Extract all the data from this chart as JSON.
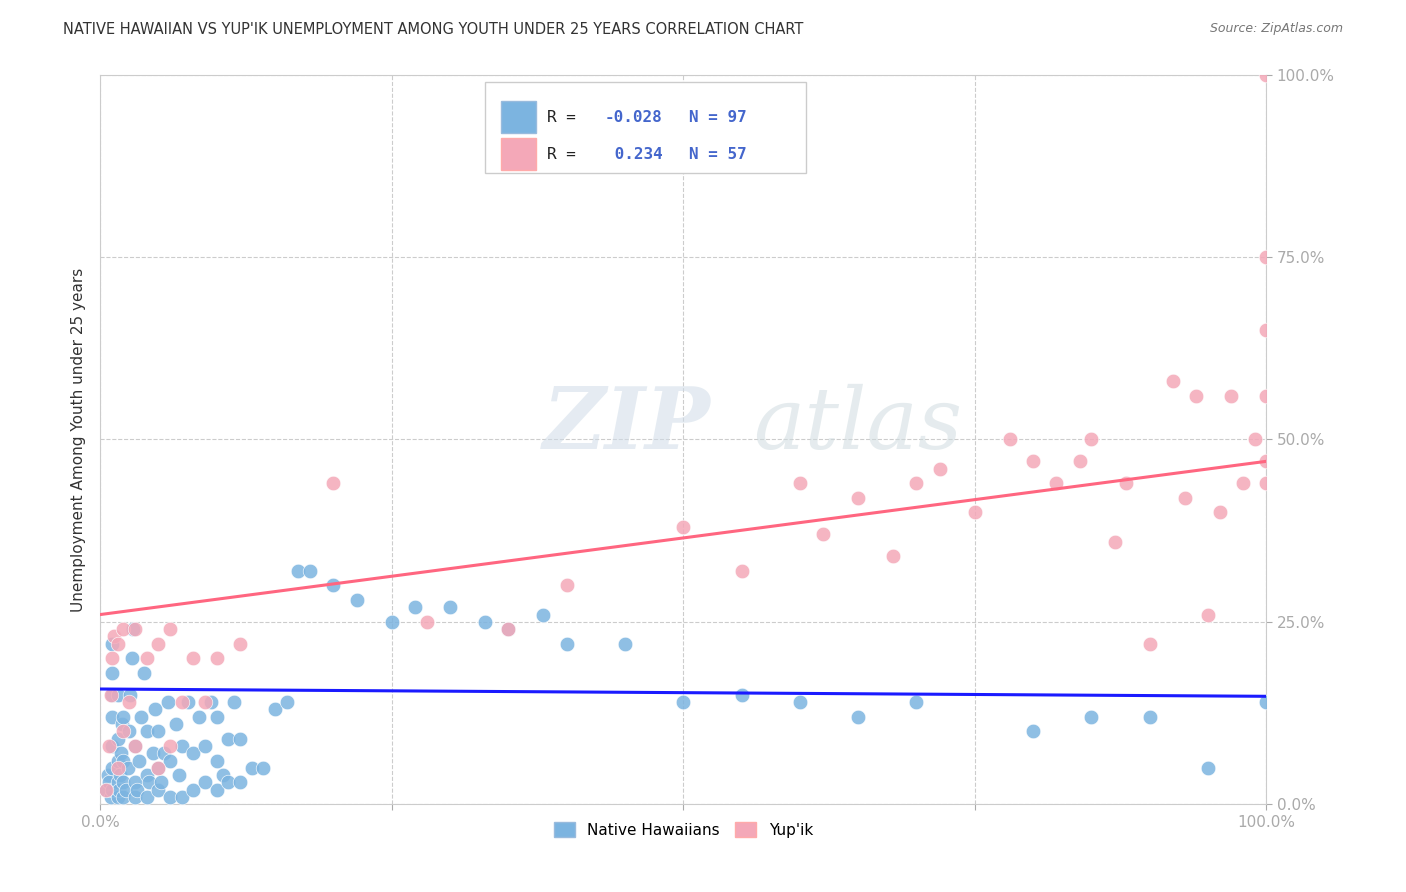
{
  "title": "NATIVE HAWAIIAN VS YUP'IK UNEMPLOYMENT AMONG YOUTH UNDER 25 YEARS CORRELATION CHART",
  "source": "Source: ZipAtlas.com",
  "ylabel": "Unemployment Among Youth under 25 years",
  "yticks": [
    "0.0%",
    "25.0%",
    "50.0%",
    "75.0%",
    "100.0%"
  ],
  "ytick_vals": [
    0.0,
    0.25,
    0.5,
    0.75,
    1.0
  ],
  "legend_label1": "Native Hawaiians",
  "legend_label2": "Yup'ik",
  "color_blue": "#7CB4E0",
  "color_pink": "#F4A8B8",
  "line_color_blue": "#1a1aff",
  "line_color_pink": "#FF6680",
  "watermark_zip": "ZIP",
  "watermark_atlas": "atlas",
  "background_color": "#FFFFFF",
  "grid_color": "#CCCCCC",
  "native_hawaiian_x": [
    0.005,
    0.007,
    0.008,
    0.009,
    0.01,
    0.01,
    0.01,
    0.01,
    0.01,
    0.01,
    0.01,
    0.015,
    0.015,
    0.015,
    0.015,
    0.015,
    0.016,
    0.017,
    0.018,
    0.019,
    0.02,
    0.02,
    0.02,
    0.02,
    0.022,
    0.024,
    0.025,
    0.026,
    0.027,
    0.028,
    0.03,
    0.03,
    0.03,
    0.032,
    0.033,
    0.035,
    0.038,
    0.04,
    0.04,
    0.04,
    0.042,
    0.045,
    0.047,
    0.05,
    0.05,
    0.05,
    0.052,
    0.055,
    0.058,
    0.06,
    0.06,
    0.065,
    0.068,
    0.07,
    0.07,
    0.075,
    0.08,
    0.08,
    0.085,
    0.09,
    0.09,
    0.095,
    0.1,
    0.1,
    0.1,
    0.105,
    0.11,
    0.11,
    0.115,
    0.12,
    0.12,
    0.13,
    0.14,
    0.15,
    0.16,
    0.17,
    0.18,
    0.2,
    0.22,
    0.25,
    0.27,
    0.3,
    0.33,
    0.35,
    0.38,
    0.4,
    0.45,
    0.5,
    0.55,
    0.6,
    0.65,
    0.7,
    0.8,
    0.85,
    0.9,
    0.95,
    1.0
  ],
  "native_hawaiian_y": [
    0.02,
    0.04,
    0.03,
    0.01,
    0.02,
    0.05,
    0.08,
    0.12,
    0.15,
    0.18,
    0.22,
    0.01,
    0.03,
    0.06,
    0.09,
    0.15,
    0.02,
    0.04,
    0.07,
    0.11,
    0.01,
    0.03,
    0.06,
    0.12,
    0.02,
    0.05,
    0.1,
    0.15,
    0.2,
    0.24,
    0.01,
    0.03,
    0.08,
    0.02,
    0.06,
    0.12,
    0.18,
    0.01,
    0.04,
    0.1,
    0.03,
    0.07,
    0.13,
    0.02,
    0.05,
    0.1,
    0.03,
    0.07,
    0.14,
    0.01,
    0.06,
    0.11,
    0.04,
    0.01,
    0.08,
    0.14,
    0.02,
    0.07,
    0.12,
    0.03,
    0.08,
    0.14,
    0.02,
    0.06,
    0.12,
    0.04,
    0.03,
    0.09,
    0.14,
    0.03,
    0.09,
    0.05,
    0.05,
    0.13,
    0.14,
    0.32,
    0.32,
    0.3,
    0.28,
    0.25,
    0.27,
    0.27,
    0.25,
    0.24,
    0.26,
    0.22,
    0.22,
    0.14,
    0.15,
    0.14,
    0.12,
    0.14,
    0.1,
    0.12,
    0.12,
    0.05,
    0.14
  ],
  "yupik_x": [
    0.005,
    0.008,
    0.009,
    0.01,
    0.012,
    0.015,
    0.015,
    0.02,
    0.02,
    0.025,
    0.03,
    0.03,
    0.04,
    0.05,
    0.05,
    0.06,
    0.06,
    0.07,
    0.08,
    0.09,
    0.1,
    0.12,
    0.2,
    0.28,
    0.35,
    0.4,
    0.5,
    0.55,
    0.6,
    0.62,
    0.65,
    0.68,
    0.7,
    0.72,
    0.75,
    0.78,
    0.8,
    0.82,
    0.84,
    0.85,
    0.87,
    0.88,
    0.9,
    0.92,
    0.93,
    0.94,
    0.95,
    0.96,
    0.97,
    0.98,
    0.99,
    1.0,
    1.0,
    1.0,
    1.0,
    1.0,
    1.0
  ],
  "yupik_y": [
    0.02,
    0.08,
    0.15,
    0.2,
    0.23,
    0.05,
    0.22,
    0.1,
    0.24,
    0.14,
    0.08,
    0.24,
    0.2,
    0.05,
    0.22,
    0.08,
    0.24,
    0.14,
    0.2,
    0.14,
    0.2,
    0.22,
    0.44,
    0.25,
    0.24,
    0.3,
    0.38,
    0.32,
    0.44,
    0.37,
    0.42,
    0.34,
    0.44,
    0.46,
    0.4,
    0.5,
    0.47,
    0.44,
    0.47,
    0.5,
    0.36,
    0.44,
    0.22,
    0.58,
    0.42,
    0.56,
    0.26,
    0.4,
    0.56,
    0.44,
    0.5,
    0.47,
    0.56,
    0.44,
    0.65,
    0.75,
    1.0
  ],
  "nh_line_x": [
    0.0,
    1.0
  ],
  "nh_line_y": [
    0.158,
    0.148
  ],
  "yupik_line_x": [
    0.0,
    1.0
  ],
  "yupik_line_y": [
    0.26,
    0.47
  ],
  "xlim": [
    0.0,
    1.0
  ],
  "ylim": [
    0.0,
    1.0
  ]
}
